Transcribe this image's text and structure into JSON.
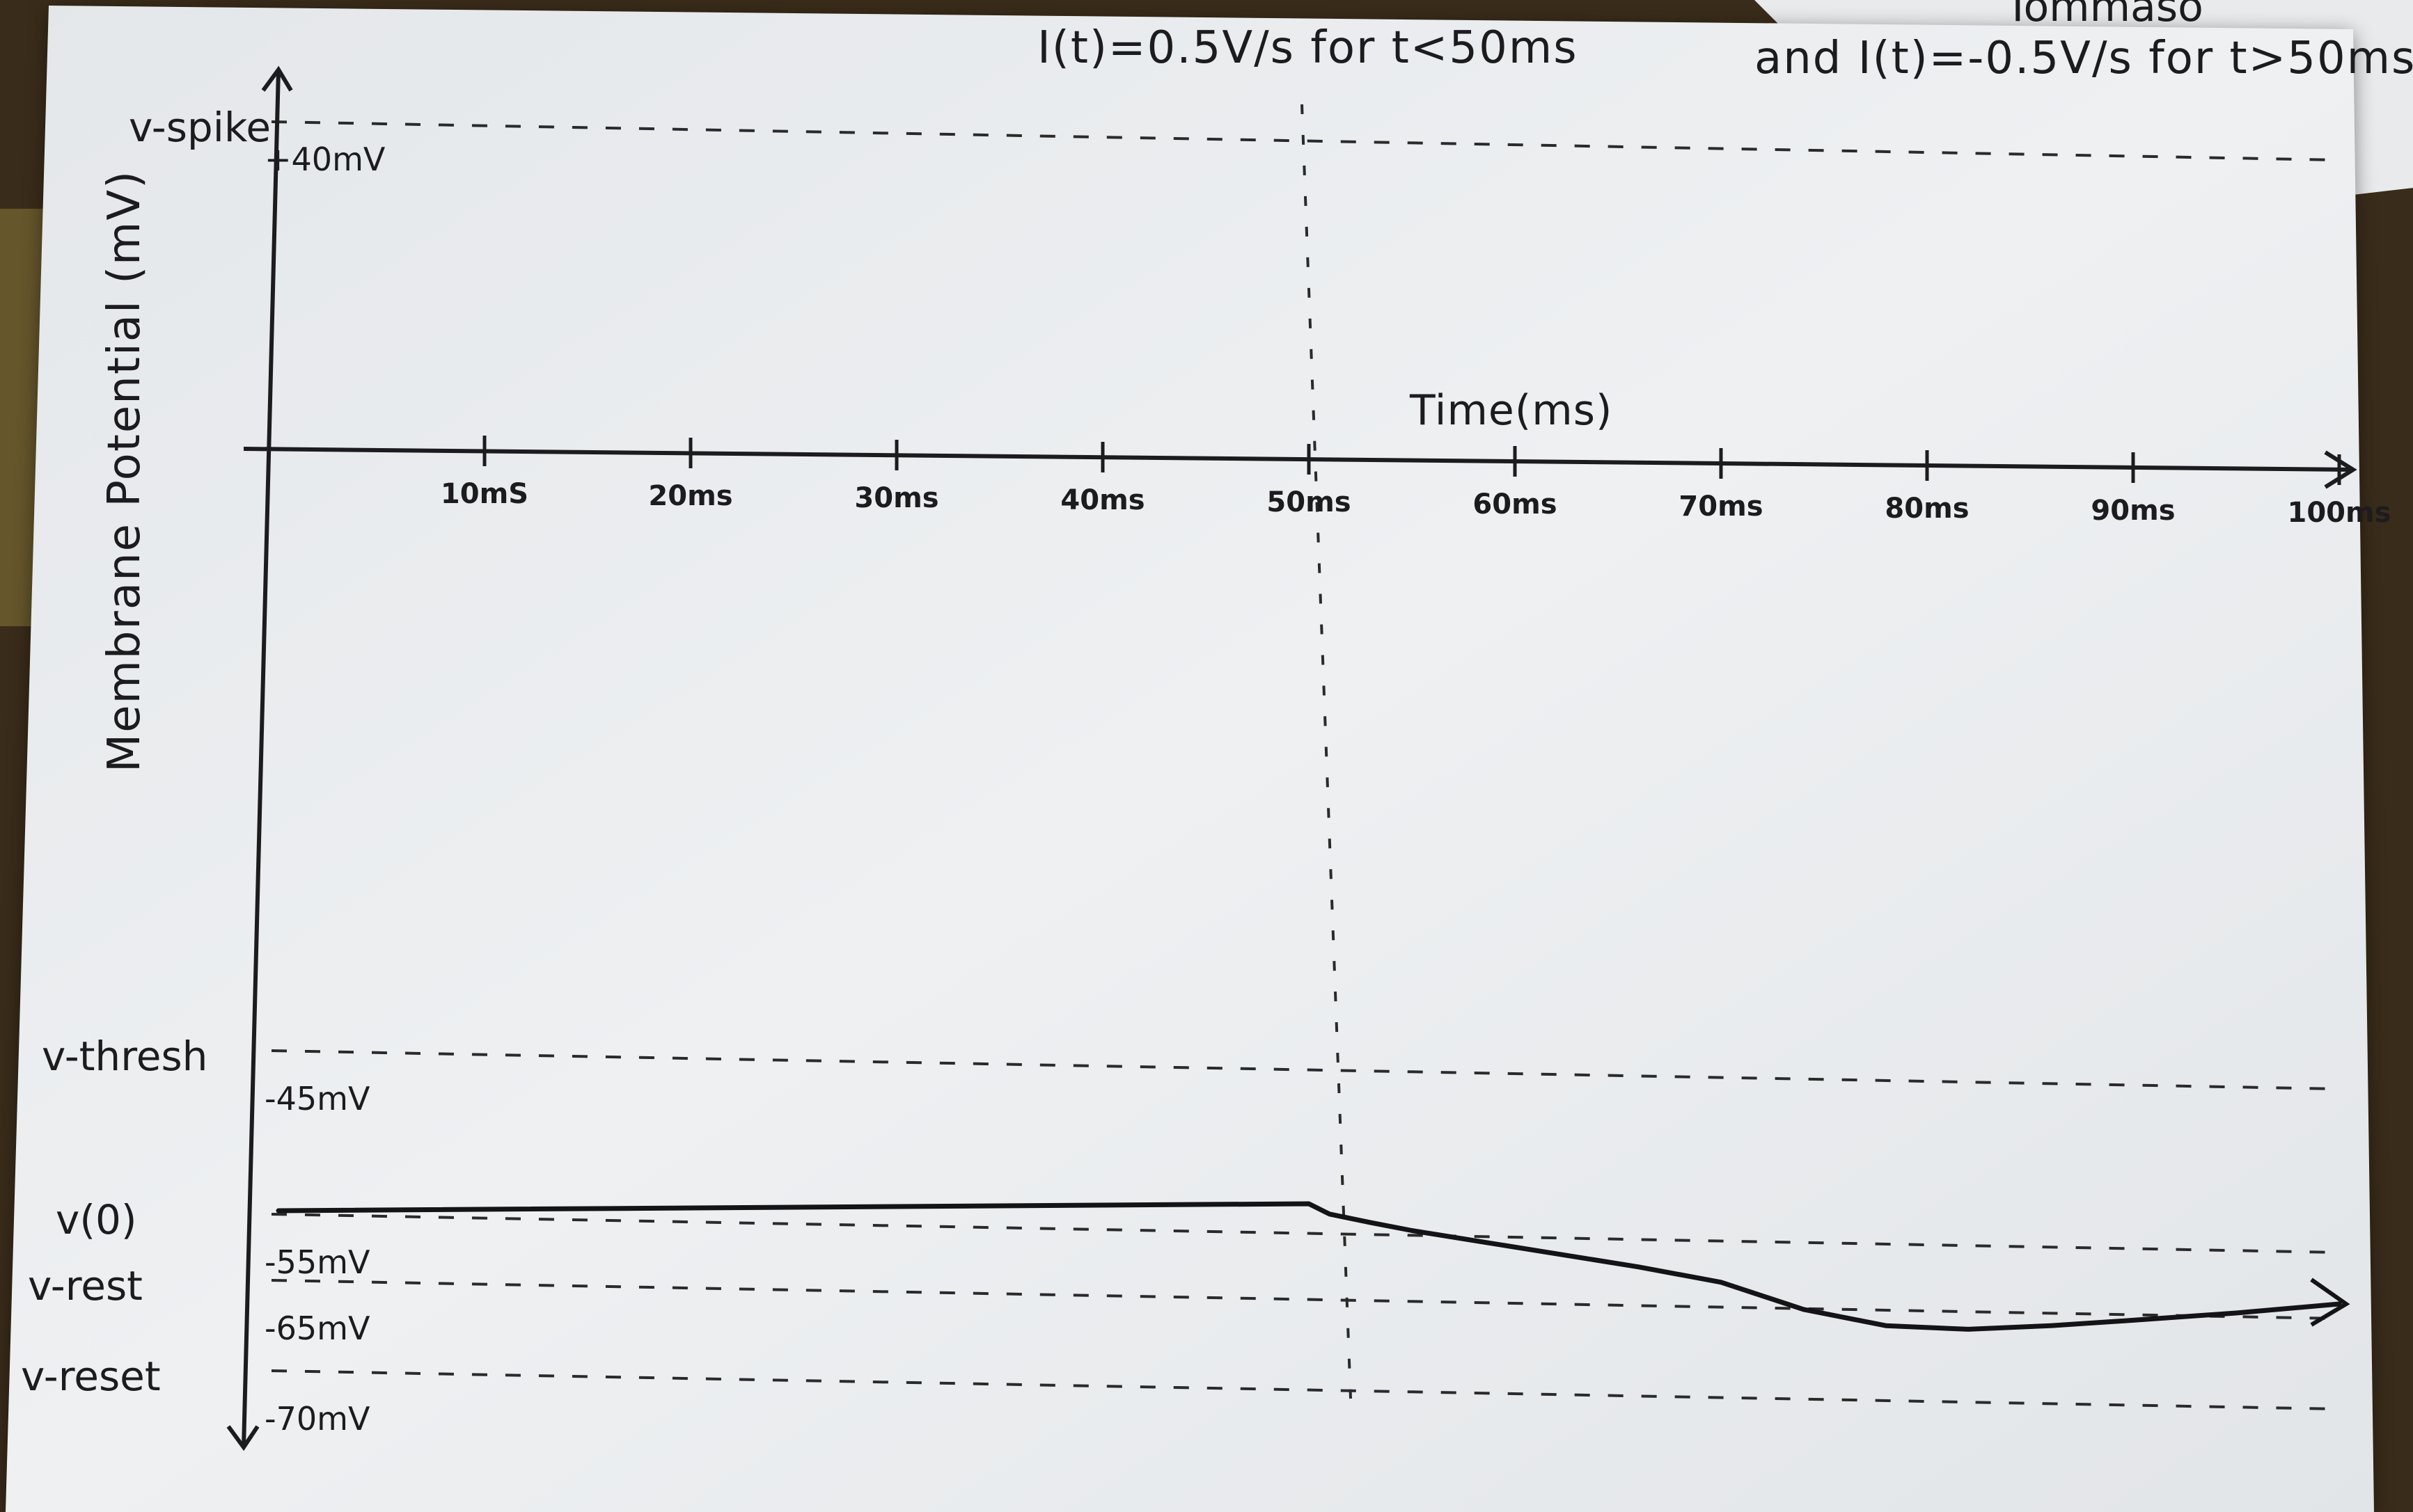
{
  "chart_data": {
    "type": "line",
    "title": "I(t)=0.5V/s for t<50ms",
    "subtitle": "and I(t)=-0.5V/s for t>50ms",
    "xlabel": "Time(ms)",
    "ylabel": "Membrane Potential (mV)",
    "xlim": [
      0,
      100
    ],
    "ylim": [
      -70,
      40
    ],
    "x_ticks": [
      {
        "value": 10,
        "label": "10mS"
      },
      {
        "value": 20,
        "label": "20ms"
      },
      {
        "value": 30,
        "label": "30ms"
      },
      {
        "value": 40,
        "label": "40ms"
      },
      {
        "value": 50,
        "label": "50ms"
      },
      {
        "value": 60,
        "label": "60ms"
      },
      {
        "value": 70,
        "label": "70ms"
      },
      {
        "value": 80,
        "label": "80ms"
      },
      {
        "value": 90,
        "label": "90ms"
      },
      {
        "value": 100,
        "label": "100ms"
      }
    ],
    "reference_lines": [
      {
        "name": "v-spike",
        "value": 40,
        "label": "+40mV"
      },
      {
        "name": "v-thresh",
        "value": -45,
        "label": "-45mV"
      },
      {
        "name": "v(0)",
        "value": -55,
        "label": "-55mV"
      },
      {
        "name": "v-rest",
        "value": -65,
        "label": "-65mV"
      },
      {
        "name": "v-reset",
        "value": -70,
        "label": "-70mV"
      }
    ],
    "vertical_marker": {
      "x": 50
    },
    "series": [
      {
        "x": [
          0,
          50,
          51,
          53,
          55,
          58,
          62,
          66,
          70,
          74,
          78,
          82,
          86,
          90,
          95,
          100
        ],
        "y": [
          -55,
          -55,
          -55.5,
          -56.8,
          -58,
          -59.5,
          -61.5,
          -63.5,
          -65.3,
          -66.8,
          -67.7,
          -67.9,
          -67.7,
          -67.4,
          -67.0,
          -66.5
        ]
      }
    ],
    "grid": false
  },
  "corner_note": "Tommaso"
}
